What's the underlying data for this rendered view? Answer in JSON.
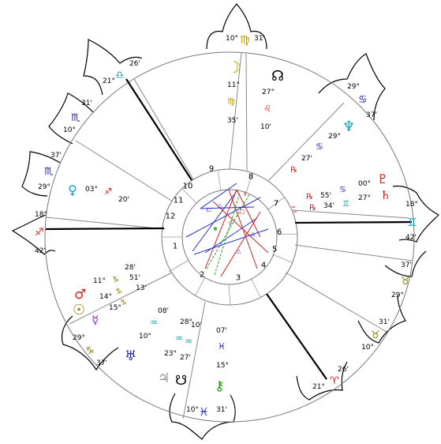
{
  "chart": {
    "cusp_labels": [
      {
        "id": "c10",
        "deg": "10°",
        "sign": "♍",
        "min": "31'",
        "color": "#b8a000"
      },
      {
        "id": "c11",
        "deg": "21°",
        "sign": "♎",
        "min": "26'",
        "color": "#10a0b8"
      },
      {
        "id": "c12",
        "deg": "10°",
        "sign": "♏",
        "min": "31'",
        "color": "#2020c0"
      },
      {
        "id": "c1",
        "deg": "29°",
        "sign": "♏",
        "min": "37'",
        "color": "#2020c0"
      },
      {
        "id": "c2",
        "deg": "18°",
        "sign": "♐",
        "min": "42'",
        "color": "#d02020"
      },
      {
        "id": "c3",
        "deg": "29°",
        "sign": "♑",
        "min": "37'",
        "color": "#8a7a00"
      },
      {
        "id": "c4",
        "deg": "10°",
        "sign": "♓",
        "min": "31'",
        "color": "#2020c0"
      },
      {
        "id": "c5",
        "deg": "21°",
        "sign": "♈",
        "min": "26'",
        "color": "#d02020"
      },
      {
        "id": "c6",
        "deg": "10°",
        "sign": "♉",
        "min": "31'",
        "color": "#8a7a00"
      },
      {
        "id": "c7",
        "deg": "29°",
        "sign": "♉",
        "min": "37'",
        "color": "#8a7a00"
      },
      {
        "id": "c8",
        "deg": "18°",
        "sign": "♊",
        "min": "42'",
        "color": "#10a0b8"
      },
      {
        "id": "c9",
        "deg": "29°",
        "sign": "♋",
        "min": "37'",
        "color": "#2020c0"
      }
    ],
    "house_numbers": [
      "1",
      "2",
      "3",
      "4",
      "5",
      "6",
      "7",
      "8",
      "9",
      "10",
      "11",
      "12"
    ],
    "planets": {
      "moon": {
        "glyph": "☽",
        "deg": "11°",
        "sign": "♍",
        "min": "35'",
        "color": "#b8a000"
      },
      "north_node": {
        "glyph": "☊",
        "deg": "27°",
        "sign": "♌",
        "min": "10'",
        "color": "#000000",
        "sign_color": "#d02020"
      },
      "neptune": {
        "glyph": "♆",
        "deg": "29°",
        "sign": "♋",
        "min": "27'",
        "color": "#10a0b8",
        "sign_color": "#2020c0"
      },
      "pluto": {
        "glyph": "♇",
        "deg": "00°",
        "sign": "♋",
        "min": "27°",
        "color": "#d02020",
        "sign_color": "#2020c0"
      },
      "saturn": {
        "glyph": "♄",
        "deg": "55'",
        "sign": "♊",
        "min": "34'",
        "color": "#d02020",
        "retro": "℞",
        "sign_color": "#10a0b8"
      },
      "venus": {
        "glyph": "♀",
        "deg": "03°",
        "sign": "♐",
        "min": "20'",
        "color": "#10a0b8",
        "sign_color": "#d02020"
      },
      "mars": {
        "glyph": "♂",
        "deg": "11°",
        "min": "28'",
        "color": "#d02020"
      },
      "sun": {
        "glyph": "☉",
        "deg": "14°",
        "min": "51'",
        "color": "#8a7a00"
      },
      "mercury": {
        "glyph": "☿",
        "deg": "15°",
        "min": "13'",
        "color": "#8a30b0"
      },
      "uranus": {
        "glyph": "♅",
        "deg": "10°",
        "min": "08'",
        "color": "#2020c0"
      },
      "jupiter": {
        "glyph": "♃",
        "deg": "23°",
        "min": "27'",
        "color": "#909090"
      },
      "south_node": {
        "glyph": "☋",
        "color": "#000000"
      },
      "chiron": {
        "glyph": "⚷",
        "deg": "07'",
        "min": "15°",
        "color": "#10a000",
        "sign_color": "#2020c0"
      }
    },
    "misc_text": {
      "aq_deg1": "28°",
      "aq_min1": "10'",
      "aq_sign": "♒",
      "pisc_sign": "♓",
      "cap_sign": "♑"
    },
    "colors": {
      "red": "#d02020",
      "blue": "#2020c0",
      "cyan": "#10a0b8",
      "olive": "#8a7a00",
      "green": "#10a000",
      "line": "#999999"
    }
  }
}
